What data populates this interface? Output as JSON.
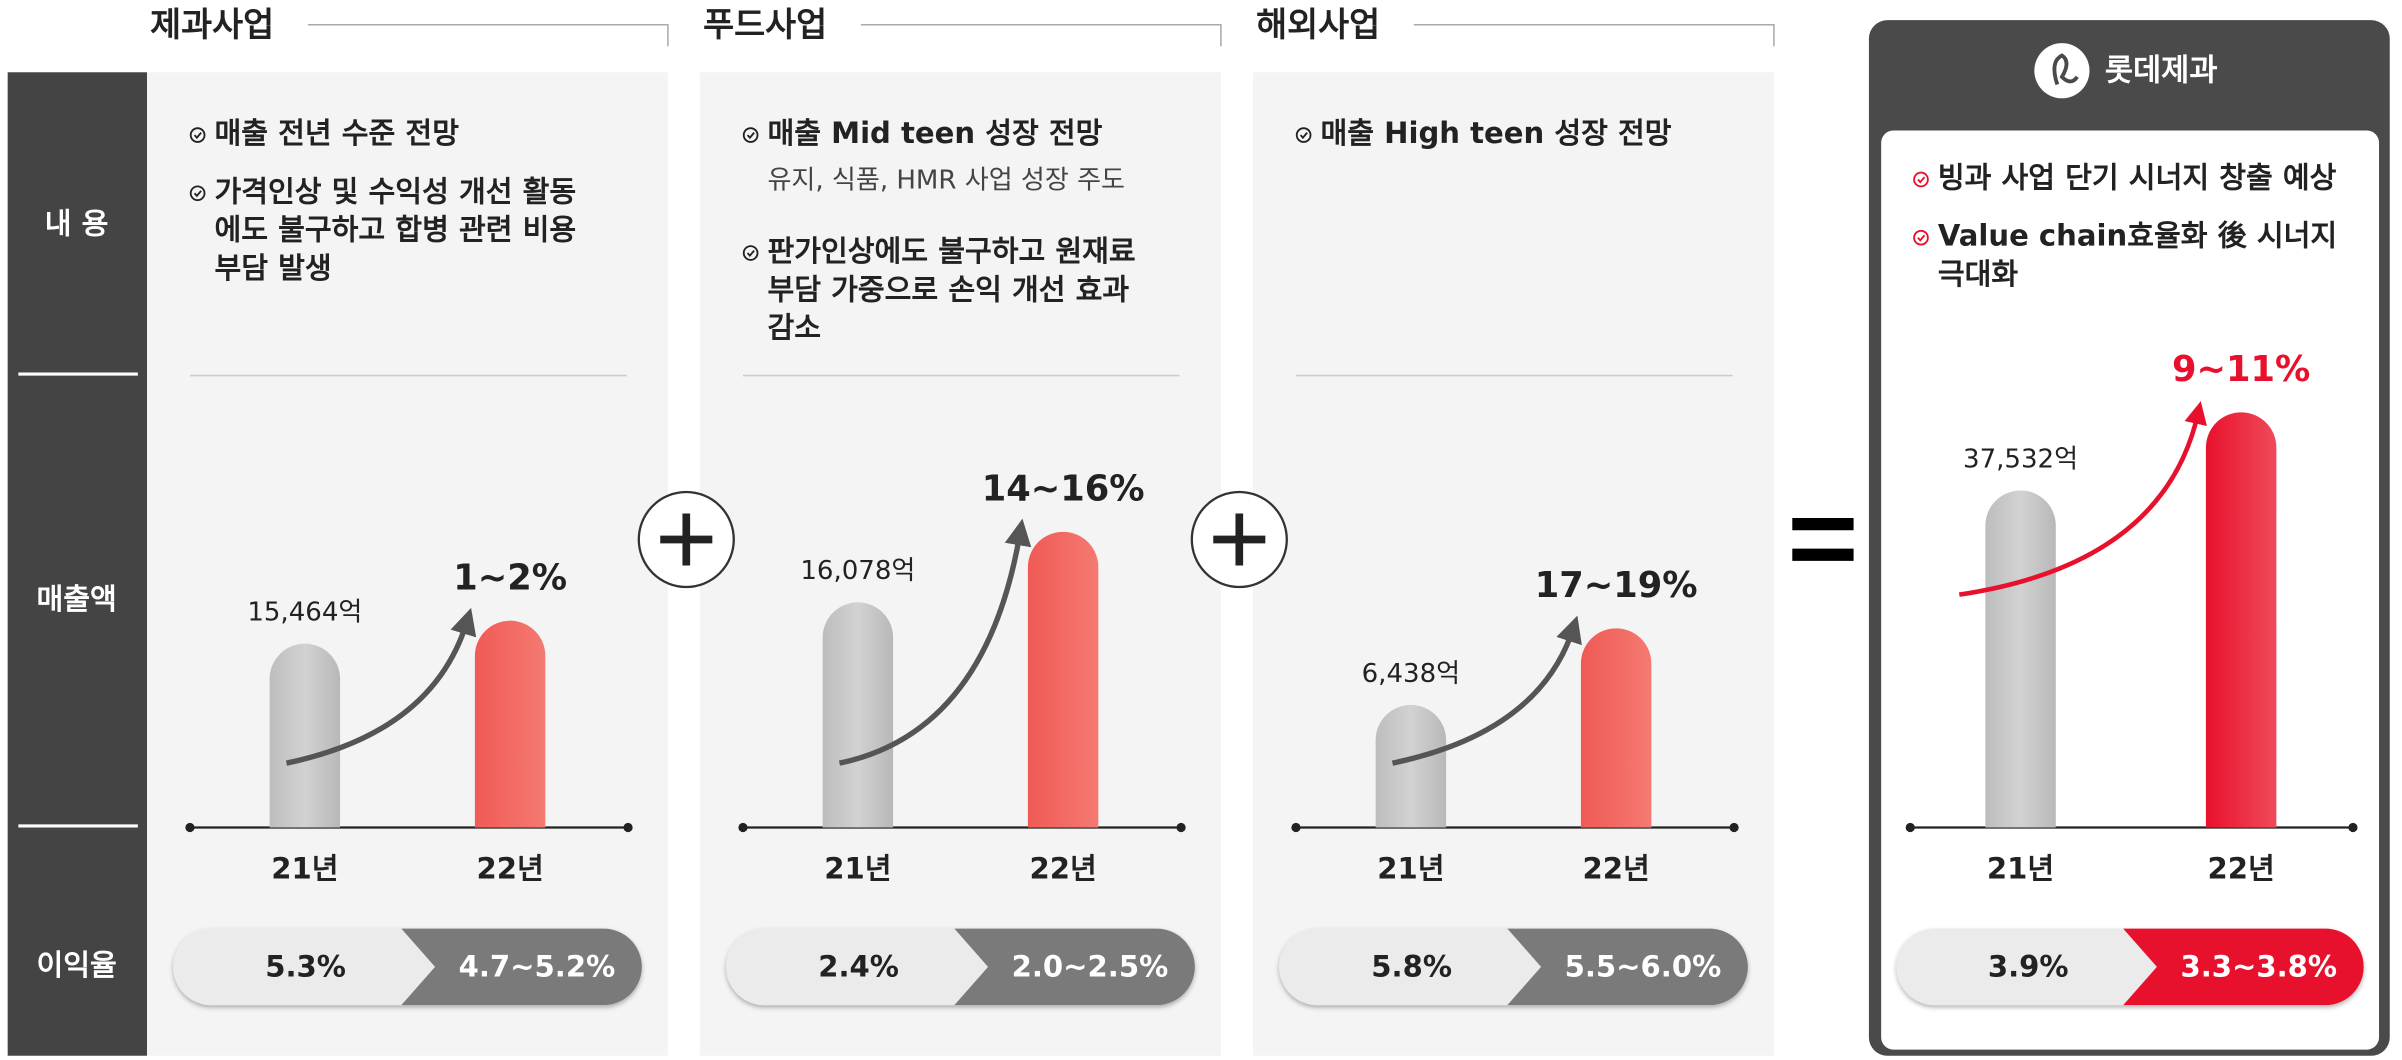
{
  "row_labels": [
    "내 용",
    "매출액",
    "이익율"
  ],
  "sections": [
    {
      "title": "제과사업",
      "bullets": [
        {
          "lines": [
            "매출 전년 수준 전망"
          ]
        },
        {
          "lines": [
            "가격인상 및 수익성 개선 활동",
            "에도 불구하고 합병 관련 비용",
            "부담 발생"
          ]
        }
      ],
      "sales": "15,464억",
      "growth": "1~2%",
      "years": [
        "21년",
        "22년"
      ],
      "margins": [
        "5.3%",
        "4.7~5.2%"
      ]
    },
    {
      "title": "푸드사업",
      "bullets": [
        {
          "lines": [
            "매출 Mid teen 성장 전망"
          ],
          "note": "유지, 식품, HMR 사업 성장 주도"
        },
        {
          "lines": [
            "판가인상에도 불구하고 원재료",
            "부담 가중으로 손익 개선 효과",
            "감소"
          ]
        }
      ],
      "sales": "16,078억",
      "growth": "14~16%",
      "years": [
        "21년",
        "22년"
      ],
      "margins": [
        "2.4%",
        "2.0~2.5%"
      ]
    },
    {
      "title": "해외사업",
      "bullets": [
        {
          "lines": [
            "매출 High teen 성장 전망"
          ]
        }
      ],
      "sales": "6,438억",
      "growth": "17~19%",
      "years": [
        "21년",
        "22년"
      ],
      "margins": [
        "5.8%",
        "5.5~6.0%"
      ]
    }
  ],
  "total": {
    "brand": "롯데제과",
    "bullets": [
      {
        "lines": [
          "빙과 사업 단기 시너지 창출 예상"
        ]
      },
      {
        "lines": [
          "Value chain효율화 後 시너지",
          "극대화"
        ]
      }
    ],
    "sales": "37,532억",
    "growth": "9~11%",
    "years": [
      "21년",
      "22년"
    ],
    "margins": [
      "3.9%",
      "3.3~3.8%"
    ]
  }
}
